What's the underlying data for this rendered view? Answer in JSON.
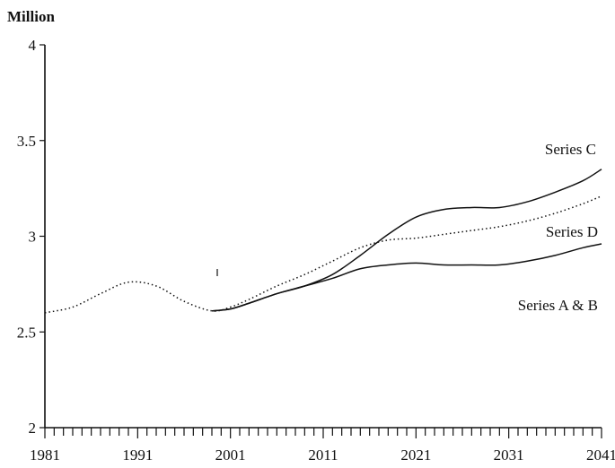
{
  "chart_data": {
    "type": "line",
    "ylabel": "Million",
    "xlabel": "",
    "xlim": [
      1981,
      2041
    ],
    "ylim": [
      2,
      4
    ],
    "x_ticks": [
      "1981",
      "1991",
      "2001",
      "2011",
      "2021",
      "2031",
      "2041"
    ],
    "y_ticks": [
      "2",
      "2.5",
      "3",
      "3.5",
      "4"
    ],
    "grid": false,
    "legend": "inline-labels",
    "series": [
      {
        "name": "Series C",
        "style": "solid",
        "x": [
          1999,
          2001,
          2003,
          2006,
          2009,
          2012,
          2015,
          2018,
          2021,
          2024,
          2027,
          2030,
          2033,
          2036,
          2039,
          2041
        ],
        "y": [
          2.61,
          2.62,
          2.65,
          2.7,
          2.74,
          2.8,
          2.9,
          3.01,
          3.1,
          3.14,
          3.15,
          3.15,
          3.18,
          3.23,
          3.29,
          3.35
        ]
      },
      {
        "name": "Series D",
        "style": "dotted",
        "x": [
          1981,
          1984,
          1987,
          1990,
          1993,
          1996,
          1999,
          2001,
          2003,
          2006,
          2009,
          2012,
          2015,
          2018,
          2021,
          2024,
          2027,
          2030,
          2033,
          2036,
          2039,
          2041
        ],
        "y": [
          2.6,
          2.63,
          2.7,
          2.76,
          2.74,
          2.66,
          2.61,
          2.63,
          2.67,
          2.74,
          2.8,
          2.87,
          2.94,
          2.98,
          2.99,
          3.01,
          3.03,
          3.05,
          3.08,
          3.12,
          3.17,
          3.21
        ]
      },
      {
        "name": "Series A & B",
        "style": "solid",
        "x": [
          1999,
          2001,
          2003,
          2006,
          2009,
          2012,
          2015,
          2018,
          2021,
          2024,
          2027,
          2030,
          2033,
          2036,
          2039,
          2041
        ],
        "y": [
          2.61,
          2.62,
          2.65,
          2.7,
          2.74,
          2.78,
          2.83,
          2.85,
          2.86,
          2.85,
          2.85,
          2.85,
          2.87,
          2.9,
          2.94,
          2.96
        ]
      }
    ]
  }
}
